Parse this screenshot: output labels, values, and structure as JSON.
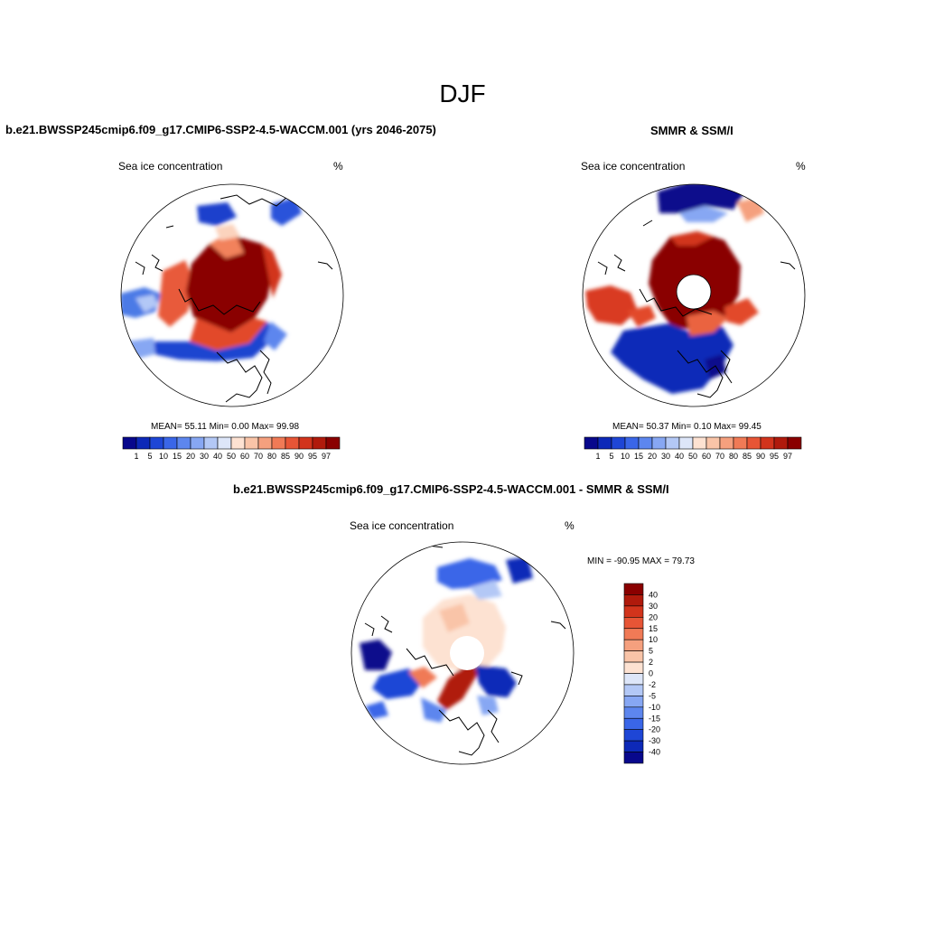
{
  "figure": {
    "title": "DJF",
    "field": "Sea ice concentration",
    "units": "%"
  },
  "chart_data": [
    {
      "type": "heatmap",
      "projection": "north polar stereographic",
      "title": "b.e21.BWSSP245cmip6.f09_g17.CMIP6-SSP2-4.5-WACCM.001 (yrs 2046-2075)",
      "field": "Sea ice concentration",
      "units": "%",
      "stats_text": "MEAN=  55.11  Min=   0.00  Max=  99.98",
      "stats": {
        "mean": 55.11,
        "min": 0.0,
        "max": 99.98
      },
      "colorbar_levels": [
        "1",
        "5",
        "10",
        "15",
        "20",
        "30",
        "40",
        "50",
        "60",
        "70",
        "80",
        "85",
        "90",
        "95",
        "97"
      ],
      "colorbar_colors": [
        "#08088c",
        "#0d29b8",
        "#1e46d6",
        "#3a66e8",
        "#5d86ee",
        "#87a7f3",
        "#b3c8f6",
        "#dde6f9",
        "#fde2d2",
        "#f9c4a8",
        "#f5a07e",
        "#f07a56",
        "#e75536",
        "#d2341c",
        "#b01a0c",
        "#8a0000"
      ],
      "has_pole_hole": false
    },
    {
      "type": "heatmap",
      "projection": "north polar stereographic",
      "title": "SMMR & SSM/I",
      "field": "Sea ice concentration",
      "units": "%",
      "stats_text": "MEAN=  50.37  Min=   0.10  Max=  99.45",
      "stats": {
        "mean": 50.37,
        "min": 0.1,
        "max": 99.45
      },
      "colorbar_levels": [
        "1",
        "5",
        "10",
        "15",
        "20",
        "30",
        "40",
        "50",
        "60",
        "70",
        "80",
        "85",
        "90",
        "95",
        "97"
      ],
      "colorbar_colors": [
        "#08088c",
        "#0d29b8",
        "#1e46d6",
        "#3a66e8",
        "#5d86ee",
        "#87a7f3",
        "#b3c8f6",
        "#dde6f9",
        "#fde2d2",
        "#f9c4a8",
        "#f5a07e",
        "#f07a56",
        "#e75536",
        "#d2341c",
        "#b01a0c",
        "#8a0000"
      ],
      "has_pole_hole": true
    },
    {
      "type": "heatmap",
      "projection": "north polar stereographic",
      "title": "b.e21.BWSSP245cmip6.f09_g17.CMIP6-SSP2-4.5-WACCM.001 - SMMR & SSM/I",
      "field": "Sea ice concentration",
      "units": "%",
      "stats_text": "MIN = -90.95 MAX =  79.73",
      "stats": {
        "min": -90.95,
        "max": 79.73
      },
      "colorbar_levels": [
        "40",
        "30",
        "20",
        "15",
        "10",
        "5",
        "2",
        "0",
        "-2",
        "-5",
        "-10",
        "-15",
        "-20",
        "-30",
        "-40"
      ],
      "colorbar_colors": [
        "#8a0000",
        "#b01a0c",
        "#d2341c",
        "#e75536",
        "#f07a56",
        "#f5a07e",
        "#f9c4a8",
        "#fde2d2",
        "#dde6f9",
        "#b3c8f6",
        "#87a7f3",
        "#5d86ee",
        "#3a66e8",
        "#1e46d6",
        "#0d29b8",
        "#08088c"
      ],
      "has_pole_hole": true
    }
  ]
}
